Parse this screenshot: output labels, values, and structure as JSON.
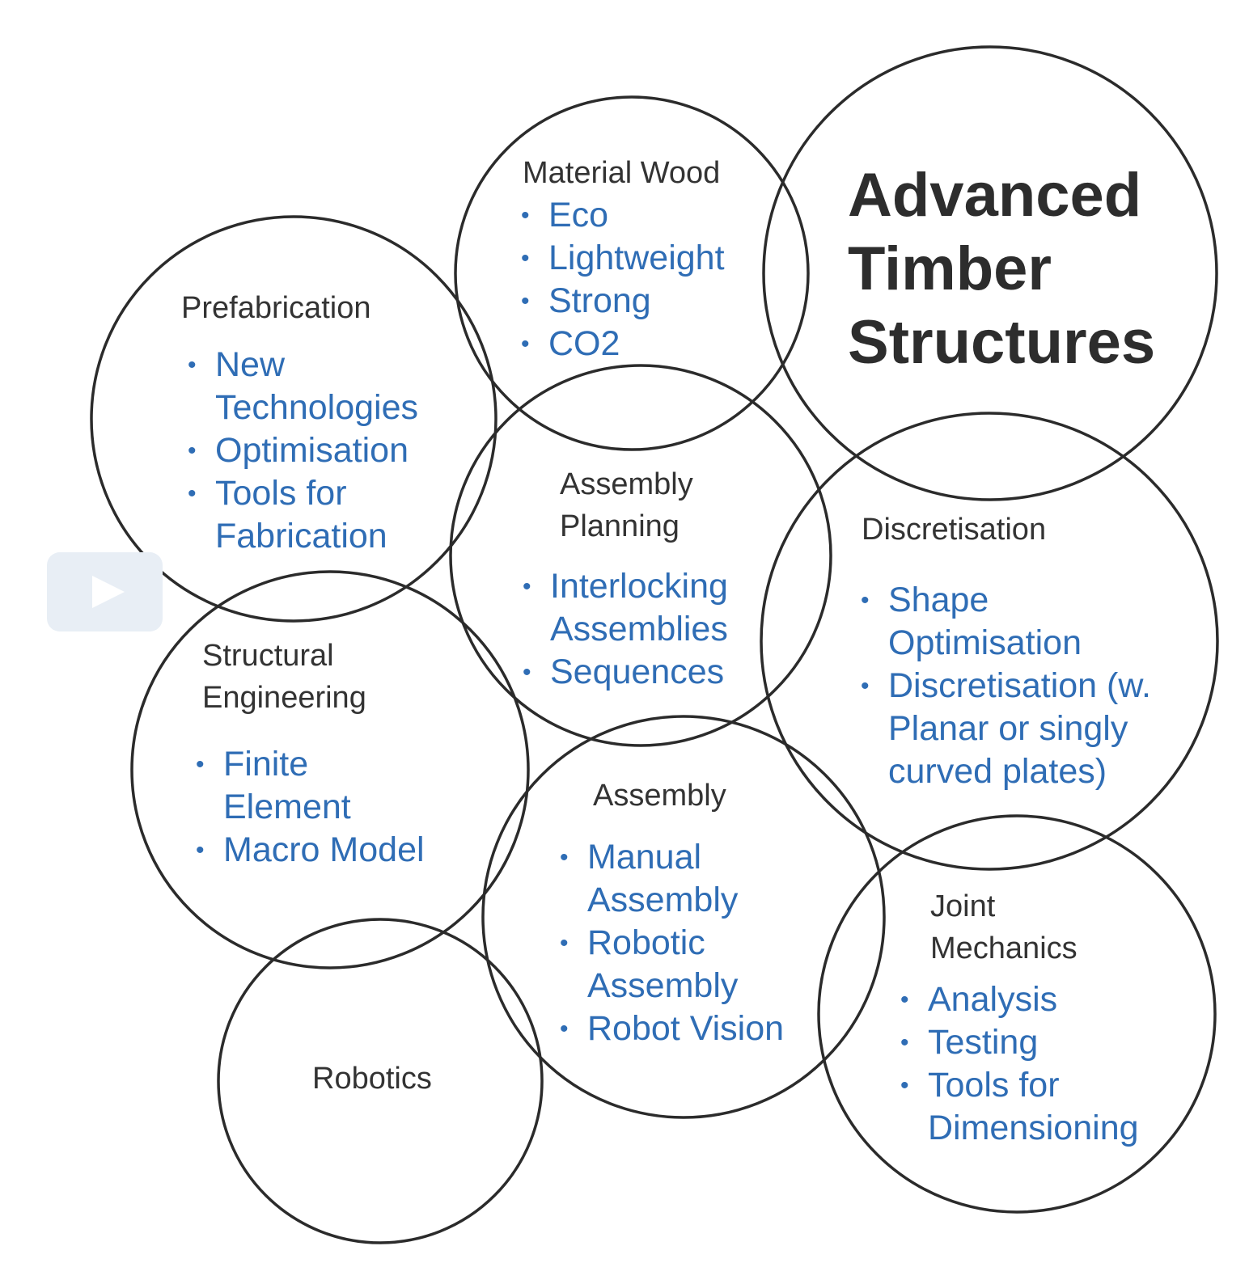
{
  "title": {
    "line1": "Advanced",
    "line2": "Timber",
    "line3": "Structures"
  },
  "topics": {
    "material_wood": {
      "label": "Material Wood",
      "items": [
        "Eco",
        "Lightweight",
        "Strong",
        "CO2"
      ]
    },
    "prefabrication": {
      "label": "Prefabrication",
      "items": [
        "New Technologies",
        "Optimisation",
        "Tools for Fabrication"
      ]
    },
    "assembly_planning": {
      "label": "Assembly Planning",
      "items": [
        "Interlocking Assemblies",
        "Sequences"
      ]
    },
    "discretisation": {
      "label": "Discretisation",
      "items": [
        "Shape Optimisation",
        "Discretisation (w. Planar or singly curved plates)"
      ]
    },
    "structural_engineering": {
      "label": "Structural Engineering",
      "items": [
        "Finite Element",
        "Macro Model"
      ]
    },
    "assembly": {
      "label": "Assembly",
      "items": [
        "Manual Assembly",
        "Robotic Assembly",
        "Robot Vision"
      ]
    },
    "joint_mechanics": {
      "label": "Joint Mechanics",
      "items": [
        "Analysis",
        "Testing",
        "Tools for Dimensioning"
      ]
    },
    "robotics": {
      "label": "Robotics"
    }
  },
  "colors": {
    "outline": "#2b2b2b",
    "label_text": "#333333",
    "item_text": "#2f6db5",
    "title_text": "#2d2d2d"
  },
  "icons": {
    "play_button": "play-icon"
  }
}
